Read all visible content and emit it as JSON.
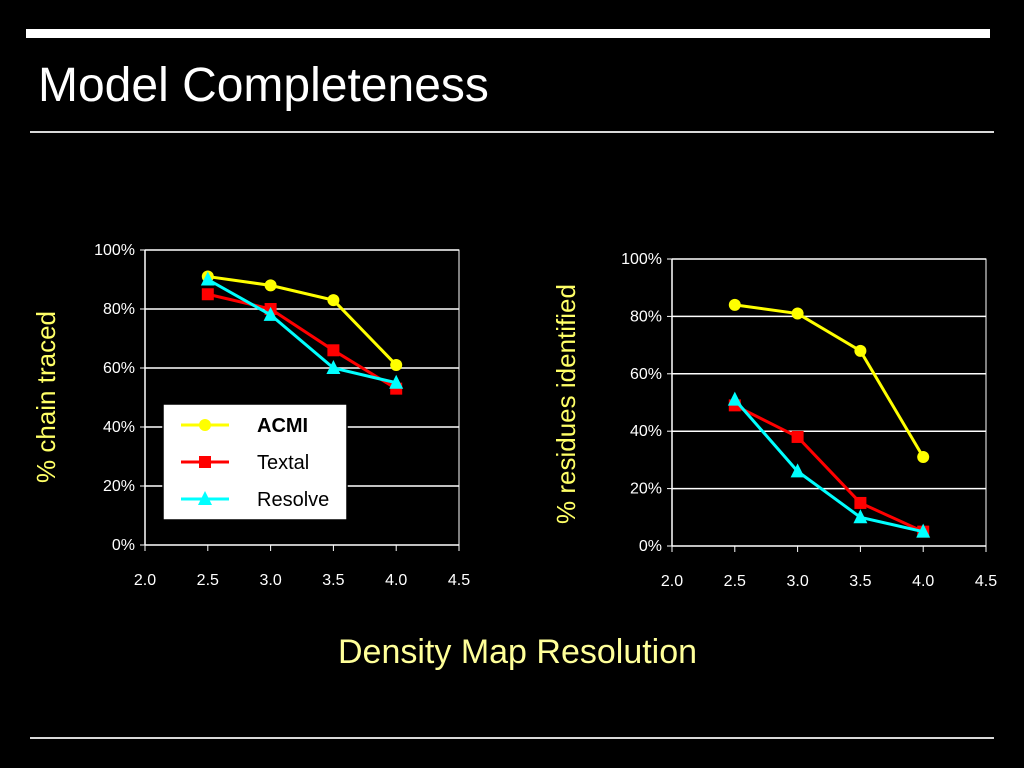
{
  "slide": {
    "title": "Model Completeness",
    "shared_xlabel": "Density Map Resolution"
  },
  "colors": {
    "background": "#000000",
    "title": "#ffffff",
    "axis_label": "#ffff66",
    "acmi": "#ffff00",
    "textal": "#ff0000",
    "resolve": "#00ffff"
  },
  "chart_data": [
    {
      "type": "line",
      "title": "",
      "xlabel": "",
      "ylabel": "% chain traced",
      "xlim": [
        2.0,
        4.5
      ],
      "ylim": [
        0,
        100
      ],
      "x_ticks": [
        "2.0",
        "2.5",
        "3.0",
        "3.5",
        "4.0",
        "4.5"
      ],
      "y_ticks": [
        "0%",
        "20%",
        "40%",
        "60%",
        "80%",
        "100%"
      ],
      "grid": true,
      "legend": "bottom-left inside",
      "series": [
        {
          "name": "ACMI",
          "marker": "circle",
          "color": "#ffff00",
          "x": [
            2.5,
            3.0,
            3.5,
            4.0
          ],
          "y": [
            91,
            88,
            83,
            61
          ]
        },
        {
          "name": "Textal",
          "marker": "square",
          "color": "#ff0000",
          "x": [
            2.5,
            3.0,
            3.5,
            4.0
          ],
          "y": [
            85,
            80,
            66,
            53
          ]
        },
        {
          "name": "Resolve",
          "marker": "triangle",
          "color": "#00ffff",
          "x": [
            2.5,
            3.0,
            3.5,
            4.0
          ],
          "y": [
            90,
            78,
            60,
            55
          ]
        }
      ]
    },
    {
      "type": "line",
      "title": "",
      "xlabel": "",
      "ylabel": "% residues identified",
      "xlim": [
        2.0,
        4.5
      ],
      "ylim": [
        0,
        100
      ],
      "x_ticks": [
        "2.0",
        "2.5",
        "3.0",
        "3.5",
        "4.0",
        "4.5"
      ],
      "y_ticks": [
        "0%",
        "20%",
        "40%",
        "60%",
        "80%",
        "100%"
      ],
      "grid": true,
      "legend": "none",
      "series": [
        {
          "name": "ACMI",
          "marker": "circle",
          "color": "#ffff00",
          "x": [
            2.5,
            3.0,
            3.5,
            4.0
          ],
          "y": [
            84,
            81,
            68,
            31
          ]
        },
        {
          "name": "Textal",
          "marker": "square",
          "color": "#ff0000",
          "x": [
            2.5,
            3.0,
            3.5,
            4.0
          ],
          "y": [
            49,
            38,
            15,
            5
          ]
        },
        {
          "name": "Resolve",
          "marker": "triangle",
          "color": "#00ffff",
          "x": [
            2.5,
            3.0,
            3.5,
            4.0
          ],
          "y": [
            51,
            26,
            10,
            5
          ]
        }
      ]
    }
  ]
}
